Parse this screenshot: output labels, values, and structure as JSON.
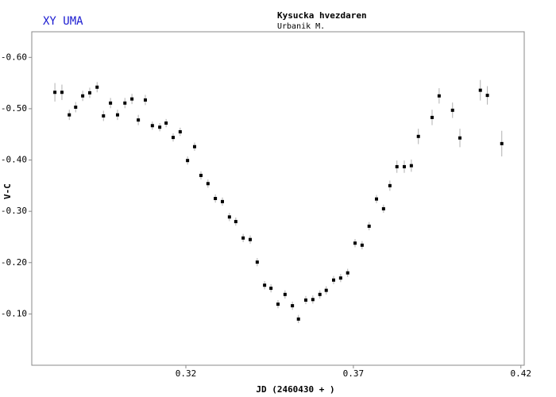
{
  "chart_data": {
    "type": "scatter",
    "title": "XY UMA",
    "subtitle": "Kysucka hvezdaren",
    "observer": "Urbanik M.",
    "x_label": "JD (2460430 + )",
    "y_label": "V-C",
    "color": "#000000",
    "error_color": "#b0b0b0",
    "xlim": [
      0.274,
      0.421
    ],
    "xticks": [
      0.32,
      0.37,
      0.42
    ],
    "ylim": [
      0,
      -0.65
    ],
    "yticks": [
      {
        "value": -0.6,
        "label": "-0.60"
      },
      {
        "value": -0.5,
        "label": "-0.50"
      },
      {
        "value": -0.4,
        "label": "-0.40"
      },
      {
        "value": -0.3,
        "label": "-0.30"
      },
      {
        "value": -0.2,
        "label": "-0.20"
      },
      {
        "value": -0.1,
        "label": "-0.10"
      }
    ],
    "x": [
      0.2809,
      0.283,
      0.2852,
      0.2871,
      0.2892,
      0.2913,
      0.2935,
      0.2954,
      0.2975,
      0.2996,
      0.3018,
      0.3039,
      0.3058,
      0.3079,
      0.31,
      0.3122,
      0.3141,
      0.3162,
      0.3183,
      0.3205,
      0.3226,
      0.3245,
      0.3266,
      0.3288,
      0.3309,
      0.333,
      0.3349,
      0.3371,
      0.3392,
      0.3413,
      0.3435,
      0.3454,
      0.3475,
      0.3496,
      0.3518,
      0.3536,
      0.3558,
      0.3579,
      0.36,
      0.3619,
      0.3641,
      0.3662,
      0.3683,
      0.3705,
      0.3726,
      0.3747,
      0.3769,
      0.379,
      0.3809,
      0.383,
      0.3852,
      0.3873,
      0.3894,
      0.3935,
      0.3956,
      0.3996,
      0.4018,
      0.4079,
      0.41,
      0.4143
    ],
    "values": [
      -0.532,
      -0.532,
      -0.488,
      -0.503,
      -0.525,
      -0.531,
      -0.542,
      -0.486,
      -0.511,
      -0.488,
      -0.511,
      -0.519,
      -0.478,
      -0.517,
      -0.467,
      -0.464,
      -0.472,
      -0.444,
      -0.455,
      -0.399,
      -0.426,
      -0.37,
      -0.354,
      -0.325,
      -0.319,
      -0.289,
      -0.28,
      -0.248,
      -0.245,
      -0.201,
      -0.156,
      -0.15,
      -0.119,
      -0.138,
      -0.116,
      -0.09,
      -0.127,
      -0.128,
      -0.138,
      -0.146,
      -0.166,
      -0.17,
      -0.18,
      -0.238,
      -0.234,
      -0.271,
      -0.324,
      -0.305,
      -0.35,
      -0.387,
      -0.387,
      -0.389,
      -0.446,
      -0.483,
      -0.525,
      -0.497,
      -0.443,
      -0.536,
      -0.526,
      -0.432
    ],
    "errors": [
      0.018,
      0.015,
      0.01,
      0.01,
      0.01,
      0.01,
      0.01,
      0.01,
      0.01,
      0.01,
      0.01,
      0.01,
      0.01,
      0.01,
      0.008,
      0.008,
      0.008,
      0.008,
      0.008,
      0.008,
      0.008,
      0.008,
      0.008,
      0.008,
      0.008,
      0.008,
      0.008,
      0.008,
      0.008,
      0.008,
      0.008,
      0.008,
      0.008,
      0.008,
      0.008,
      0.008,
      0.008,
      0.008,
      0.008,
      0.008,
      0.008,
      0.008,
      0.008,
      0.008,
      0.008,
      0.008,
      0.008,
      0.008,
      0.01,
      0.012,
      0.012,
      0.012,
      0.015,
      0.015,
      0.015,
      0.015,
      0.018,
      0.02,
      0.018,
      0.025
    ]
  }
}
